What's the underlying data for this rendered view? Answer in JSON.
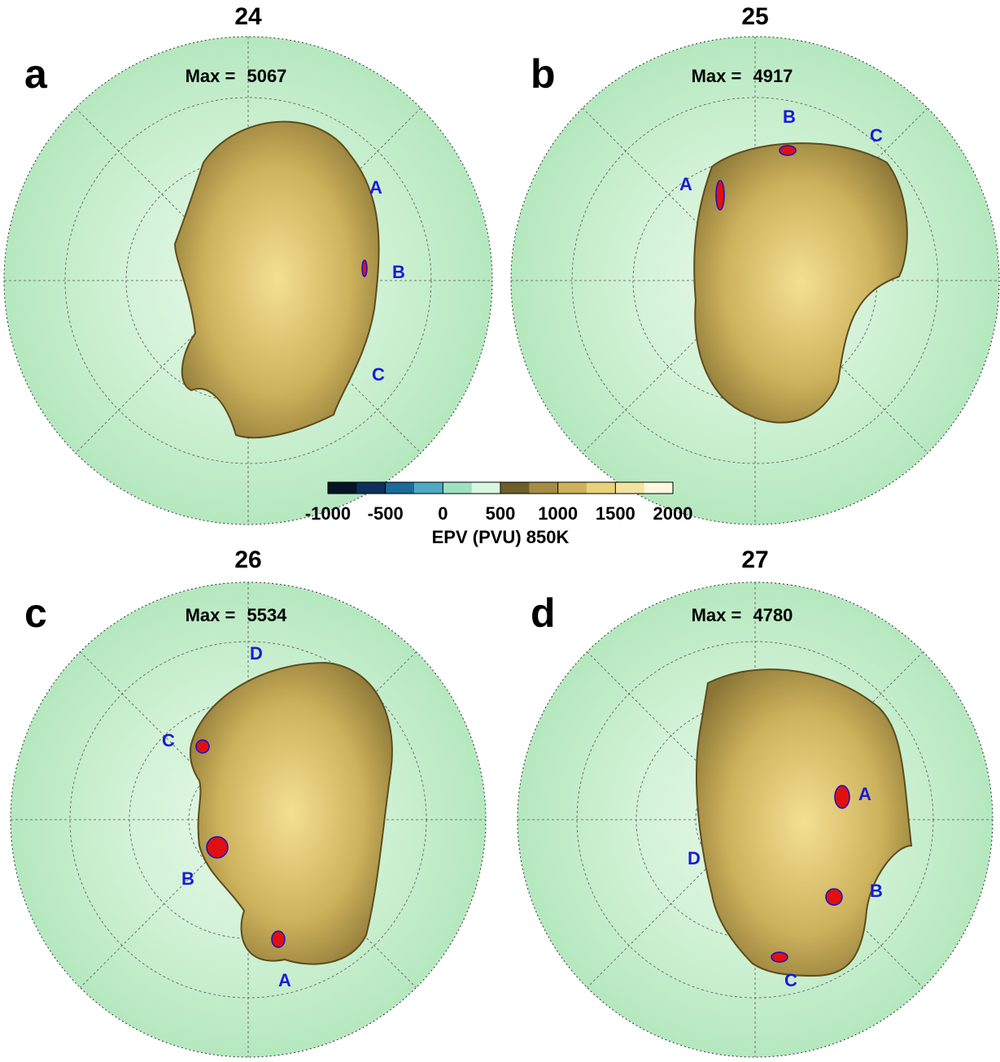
{
  "panels": [
    {
      "title": "24",
      "letter": "a",
      "max_label": "Max =",
      "max": 5067,
      "markers": [
        "A",
        "B",
        "C"
      ]
    },
    {
      "title": "25",
      "letter": "b",
      "max_label": "Max =",
      "max": 4917,
      "markers": [
        "A",
        "B",
        "C"
      ]
    },
    {
      "title": "26",
      "letter": "c",
      "max_label": "Max =",
      "max": 5534,
      "markers": [
        "D",
        "C",
        "B",
        "A"
      ]
    },
    {
      "title": "27",
      "letter": "d",
      "max_label": "Max =",
      "max": 4780,
      "markers": [
        "A",
        "D",
        "B",
        "C"
      ]
    }
  ],
  "colorbar": {
    "lim": [
      -1000,
      2000
    ],
    "ticks": [
      -1000,
      -500,
      0,
      500,
      1000,
      1500,
      2000
    ],
    "colors": [
      "#061525",
      "#0f2f5c",
      "#1c6b99",
      "#4fa9c2",
      "#9ee0c0",
      "#d9f6df",
      "#6e5e2a",
      "#a58c45",
      "#cdb25c",
      "#e8d27a",
      "#f3e3a0",
      "#fdf6e0"
    ],
    "label": "EPV (PVU) 850K"
  }
}
